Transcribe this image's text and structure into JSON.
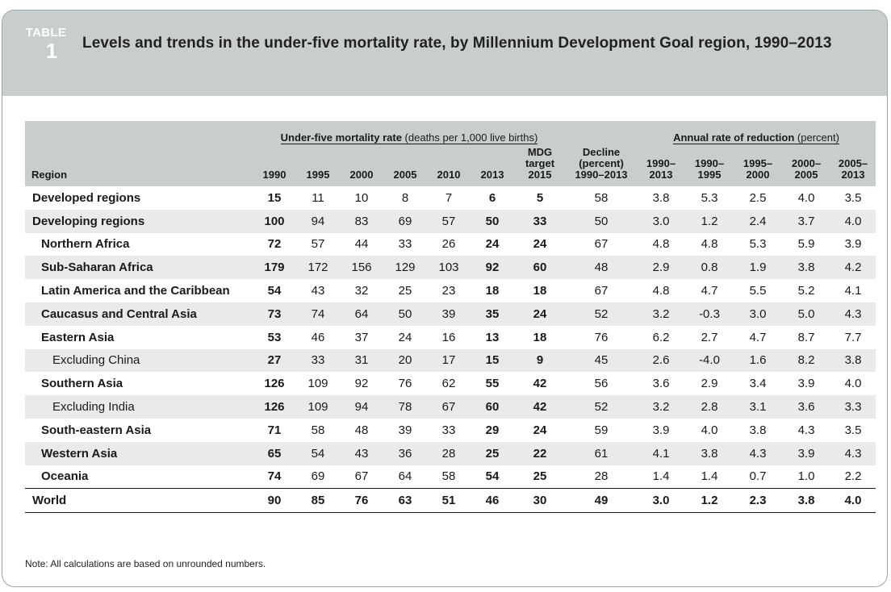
{
  "table_label": {
    "word": "TABLE",
    "number": "1"
  },
  "title": "Levels and trends in the under-five mortality rate, by Millennium Development Goal region, 1990–2013",
  "header": {
    "group1_bold": "Under-five mortality rate",
    "group1_rest": " (deaths per 1,000 live births)",
    "group2_bold": "Annual rate of reduction",
    "group2_rest": " (percent)",
    "region": "Region",
    "years": [
      "1990",
      "1995",
      "2000",
      "2005",
      "2010",
      "2013"
    ],
    "mdg": [
      "MDG",
      "target",
      "2015"
    ],
    "decline": [
      "Decline",
      "(percent)",
      "1990–2013"
    ],
    "rates": [
      [
        "1990–",
        "2013"
      ],
      [
        "1990–",
        "1995"
      ],
      [
        "1995–",
        "2000"
      ],
      [
        "2000–",
        "2005"
      ],
      [
        "2005–",
        "2013"
      ]
    ]
  },
  "rows": [
    {
      "name": "Developed regions",
      "level": 0,
      "v": [
        "15",
        "11",
        "10",
        "8",
        "7",
        "6",
        "5",
        "58",
        "3.8",
        "5.3",
        "2.5",
        "4.0",
        "3.5"
      ]
    },
    {
      "name": "Developing regions",
      "level": 0,
      "v": [
        "100",
        "94",
        "83",
        "69",
        "57",
        "50",
        "33",
        "50",
        "3.0",
        "1.2",
        "2.4",
        "3.7",
        "4.0"
      ]
    },
    {
      "name": "Northern Africa",
      "level": 1,
      "v": [
        "72",
        "57",
        "44",
        "33",
        "26",
        "24",
        "24",
        "67",
        "4.8",
        "4.8",
        "5.3",
        "5.9",
        "3.9"
      ]
    },
    {
      "name": "Sub-Saharan Africa",
      "level": 1,
      "v": [
        "179",
        "172",
        "156",
        "129",
        "103",
        "92",
        "60",
        "48",
        "2.9",
        "0.8",
        "1.9",
        "3.8",
        "4.2"
      ]
    },
    {
      "name": "Latin America and the Caribbean",
      "level": 1,
      "v": [
        "54",
        "43",
        "32",
        "25",
        "23",
        "18",
        "18",
        "67",
        "4.8",
        "4.7",
        "5.5",
        "5.2",
        "4.1"
      ]
    },
    {
      "name": "Caucasus and Central Asia",
      "level": 1,
      "v": [
        "73",
        "74",
        "64",
        "50",
        "39",
        "35",
        "24",
        "52",
        "3.2",
        "-0.3",
        "3.0",
        "5.0",
        "4.3"
      ]
    },
    {
      "name": "Eastern Asia",
      "level": 1,
      "v": [
        "53",
        "46",
        "37",
        "24",
        "16",
        "13",
        "18",
        "76",
        "6.2",
        "2.7",
        "4.7",
        "8.7",
        "7.7"
      ]
    },
    {
      "name": "Excluding China",
      "level": 2,
      "v": [
        "27",
        "33",
        "31",
        "20",
        "17",
        "15",
        "9",
        "45",
        "2.6",
        "-4.0",
        "1.6",
        "8.2",
        "3.8"
      ]
    },
    {
      "name": "Southern Asia",
      "level": 1,
      "v": [
        "126",
        "109",
        "92",
        "76",
        "62",
        "55",
        "42",
        "56",
        "3.6",
        "2.9",
        "3.4",
        "3.9",
        "4.0"
      ]
    },
    {
      "name": "Excluding India",
      "level": 2,
      "v": [
        "126",
        "109",
        "94",
        "78",
        "67",
        "60",
        "42",
        "52",
        "3.2",
        "2.8",
        "3.1",
        "3.6",
        "3.3"
      ]
    },
    {
      "name": "South-eastern Asia",
      "level": 1,
      "v": [
        "71",
        "58",
        "48",
        "39",
        "33",
        "29",
        "24",
        "59",
        "3.9",
        "4.0",
        "3.8",
        "4.3",
        "3.5"
      ]
    },
    {
      "name": "Western Asia",
      "level": 1,
      "v": [
        "65",
        "54",
        "43",
        "36",
        "28",
        "25",
        "22",
        "61",
        "4.1",
        "3.8",
        "4.3",
        "3.9",
        "4.3"
      ]
    },
    {
      "name": "Oceania",
      "level": 1,
      "v": [
        "74",
        "69",
        "67",
        "64",
        "58",
        "54",
        "25",
        "28",
        "1.4",
        "1.4",
        "0.7",
        "1.0",
        "2.2"
      ]
    }
  ],
  "world": {
    "name": "World",
    "v": [
      "90",
      "85",
      "76",
      "63",
      "51",
      "46",
      "30",
      "49",
      "3.0",
      "1.2",
      "2.3",
      "3.8",
      "4.0"
    ]
  },
  "note": "Note: All calculations are based on unrounded numbers.",
  "colors": {
    "banner": "#c8cdcd",
    "stripe": "#e9ebeb",
    "border": "#9aa4a8"
  }
}
